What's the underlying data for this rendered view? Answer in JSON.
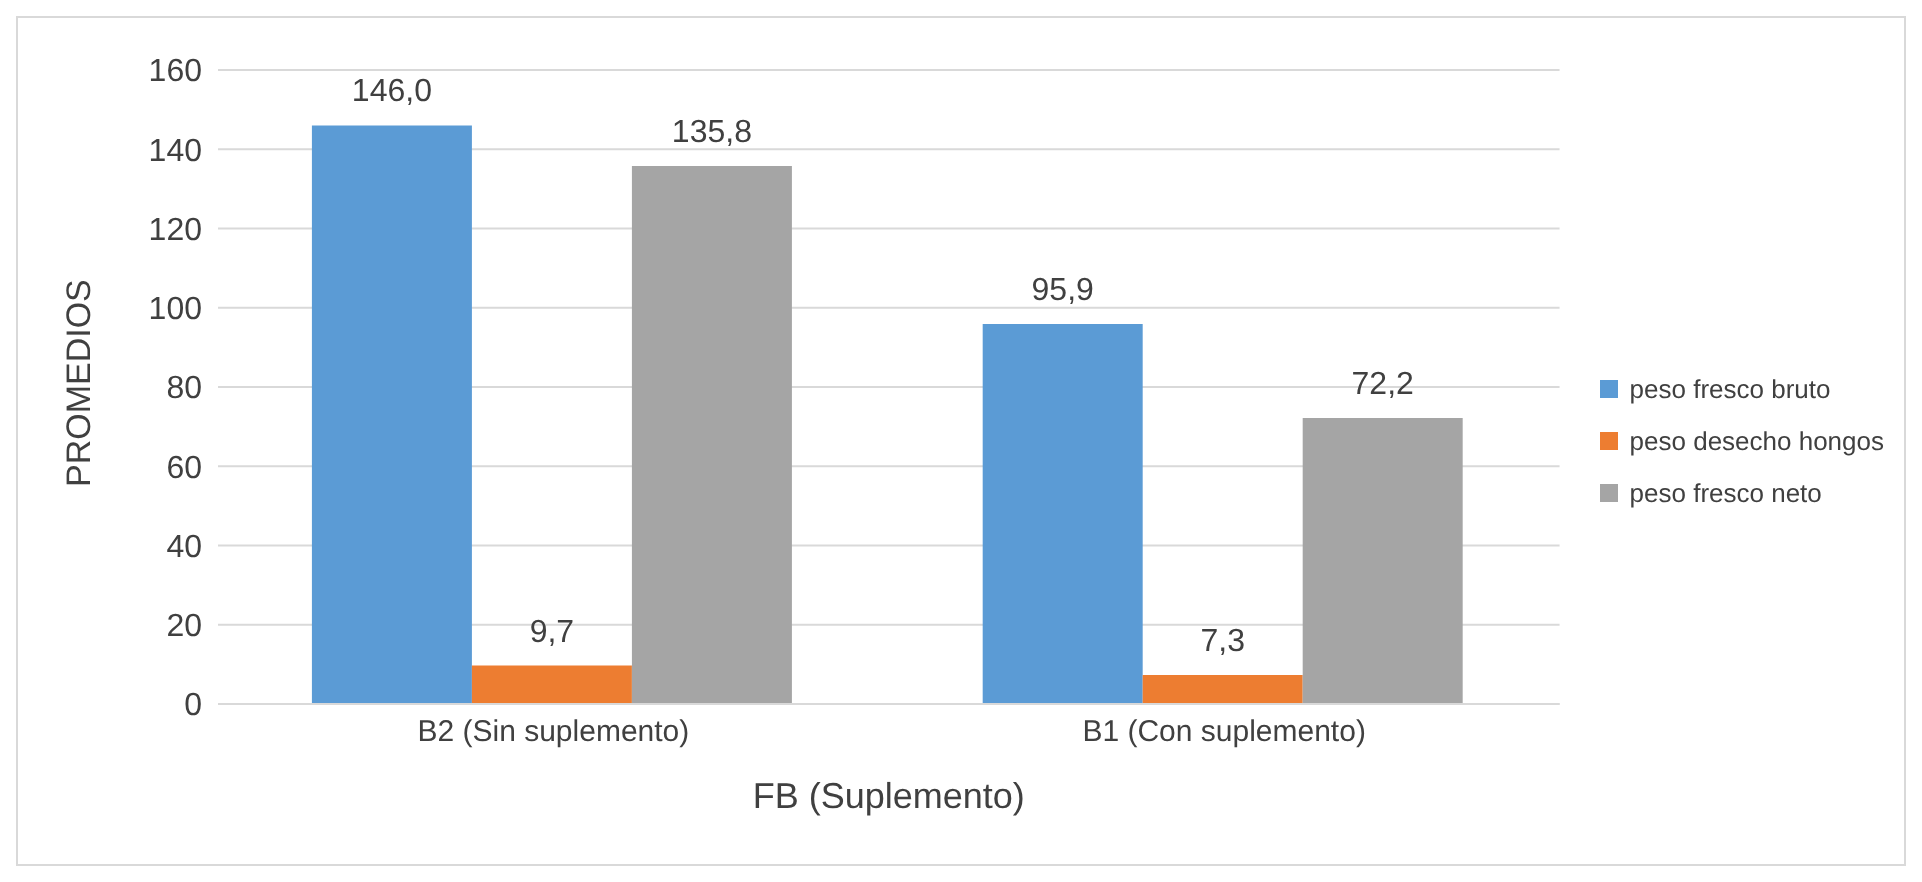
{
  "chart_data": {
    "type": "bar",
    "xlabel": "FB (Suplemento)",
    "ylabel": "PROMEDIOS",
    "categories": [
      "B2 (Sin suplemento)",
      "B1 (Con suplemento)"
    ],
    "series": [
      {
        "name": "peso fresco bruto",
        "color": "#5b9bd5",
        "values": [
          146.0,
          95.9
        ],
        "value_labels": [
          "146,0",
          "95,9"
        ]
      },
      {
        "name": "peso desecho hongos",
        "color": "#ed7d31",
        "values": [
          9.7,
          7.3
        ],
        "value_labels": [
          "9,7",
          "7,3"
        ]
      },
      {
        "name": "peso fresco neto",
        "color": "#a5a5a5",
        "values": [
          135.8,
          72.2
        ],
        "value_labels": [
          "135,8",
          "72,2"
        ]
      }
    ],
    "ylim": [
      0,
      160
    ],
    "yticks": [
      0,
      20,
      40,
      60,
      80,
      100,
      120,
      140,
      160
    ],
    "grid": "y",
    "legend": "right"
  }
}
